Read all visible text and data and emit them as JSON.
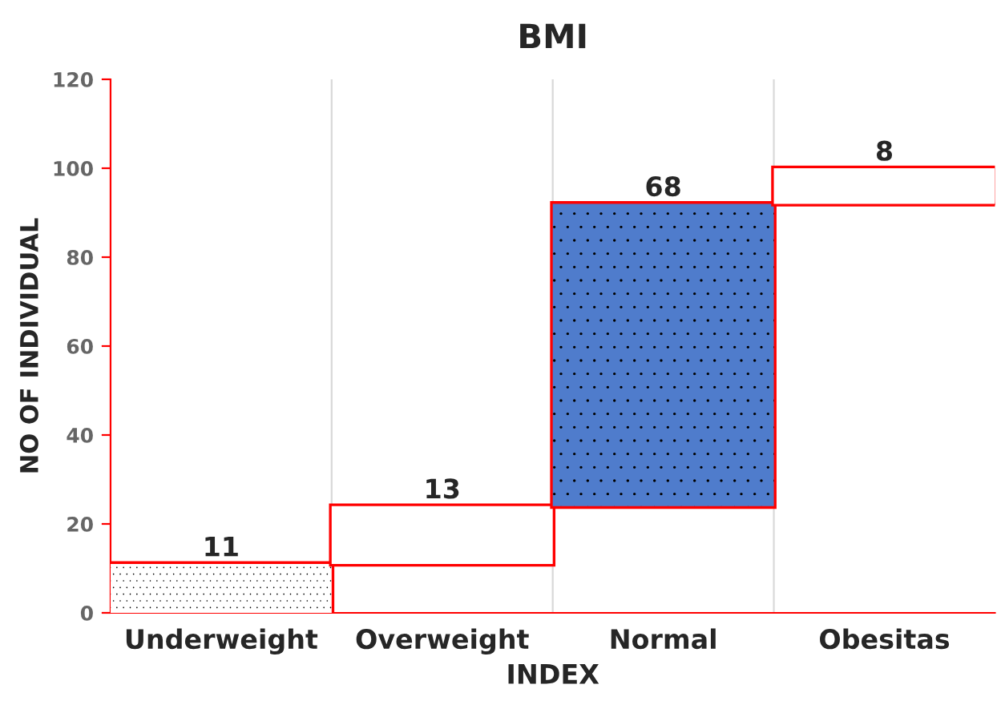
{
  "chart_data": {
    "type": "bar",
    "title": "BMI",
    "xlabel": "INDEX",
    "ylabel": "NO OF INDIVIDUAL",
    "categories": [
      "Underweight",
      "Overweight",
      "Normal",
      "Obesitas"
    ],
    "values": [
      11,
      13,
      68,
      8
    ],
    "base": [
      0,
      11,
      24,
      92
    ],
    "colors": [
      "#ffffff",
      "#ffffff",
      "#4f7ccc",
      "#ffffff"
    ],
    "ylim": [
      0,
      120
    ],
    "yticks": [
      0,
      20,
      40,
      60,
      80,
      100,
      120
    ],
    "grid": "x",
    "data_labels": true
  }
}
